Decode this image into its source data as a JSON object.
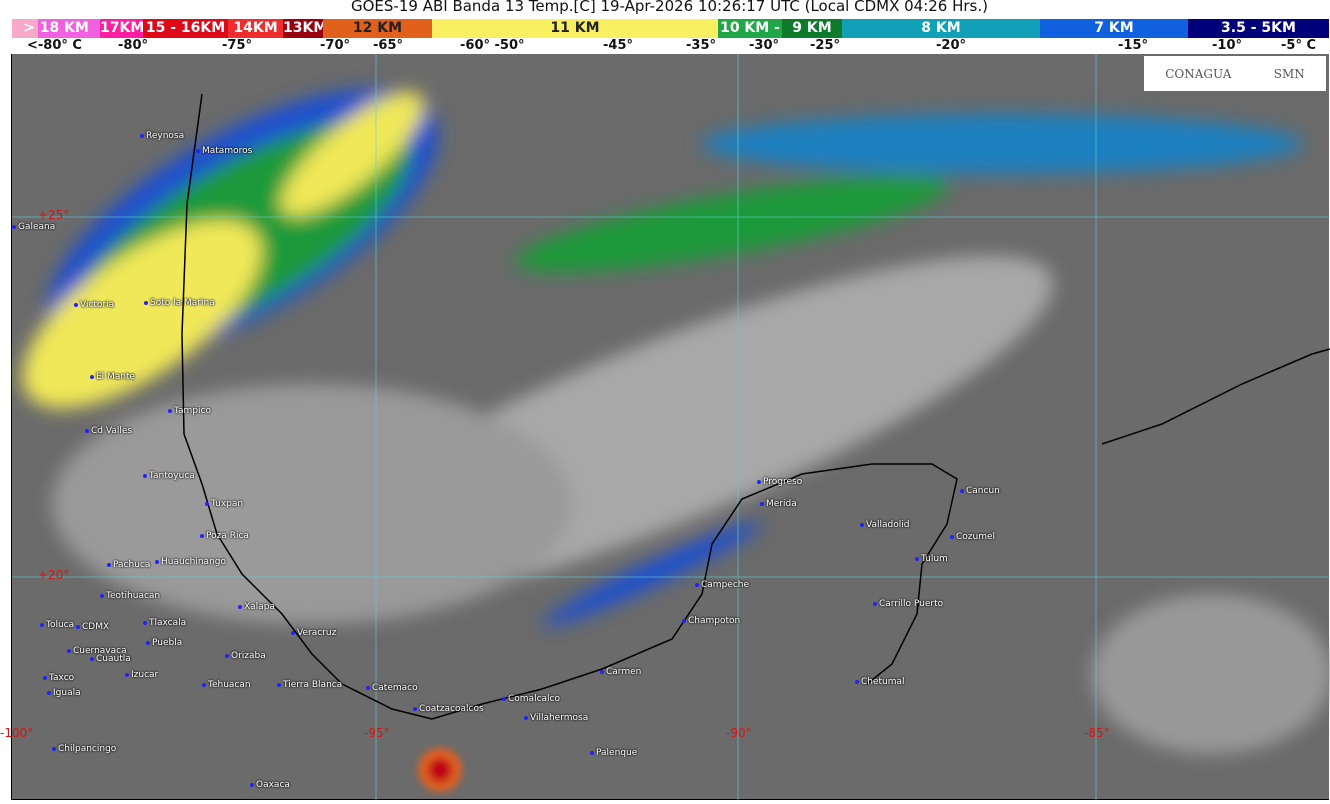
{
  "title": "GOES-19 ABI Banda 13 Temp.[C] 19-Apr-2026 10:26:17 UTC (Local CDMX  04:26 Hrs.)",
  "legend": {
    "bands": [
      {
        "label": "> 18 KM",
        "color": "#f060e0"
      },
      {
        "label": "17KM",
        "color": "#ff1ea0"
      },
      {
        "label": "15 - 16KM",
        "color": "#dd0818"
      },
      {
        "label": "14KM",
        "color": "#f02c2c"
      },
      {
        "label": "13KM",
        "color": "#980010"
      },
      {
        "label": "12 KM",
        "color": "#e0601c"
      },
      {
        "label": "11 KM",
        "color": "#f8f060"
      },
      {
        "label": "10 KM -",
        "color": "#20a848"
      },
      {
        "label": "9 KM",
        "color": "#0e7a2c"
      },
      {
        "label": "8 KM",
        "color": "#10a0b8"
      },
      {
        "label": "7 KM",
        "color": "#1060e0"
      },
      {
        "label": "3.5 - 5KM",
        "color": "#00007a"
      }
    ],
    "temps": [
      "<-80° C",
      "-80°",
      "-75°",
      "-70°",
      "-65°",
      "-60°  -50°",
      "-45°",
      "-35°",
      "-30°",
      "-25°",
      "-20°",
      "-15°",
      "-10°",
      "-5°  C"
    ]
  },
  "logos": {
    "conagua": "CONAGUA",
    "smn": "SMN"
  },
  "grid": {
    "lat": [
      "+25°",
      "+20°"
    ],
    "lon": [
      "-100°",
      "-95°",
      "-90°",
      "-85°"
    ]
  },
  "cities": [
    "Reynosa",
    "Matamoros",
    "Galeana",
    "Victoria",
    "Soto la Marina",
    "El Mante",
    "Tampico",
    "Cd Valles",
    "Tantoyuca",
    "Tuxpan",
    "Poza Rica",
    "Huauchinango",
    "Pachuca",
    "Teotihuacan",
    "Tlaxcala",
    "Toluca",
    "CDMX",
    "Puebla",
    "Cuernavaca",
    "Cuautla",
    "Izucar",
    "Taxco",
    "Iguala",
    "Xalapa",
    "Veracruz",
    "Orizaba",
    "Tehuacan",
    "Tierra Blanca",
    "Catemaco",
    "Coatzacoalcos",
    "Comalcalco",
    "Villahermosa",
    "Carmen",
    "Palenque",
    "Chilpancingo",
    "Oaxaca",
    "Campeche",
    "Champoton",
    "Progreso",
    "Merida",
    "Valladolid",
    "Cancun",
    "Cozumel",
    "Tulum",
    "Carrillo Puerto",
    "Chetumal"
  ]
}
